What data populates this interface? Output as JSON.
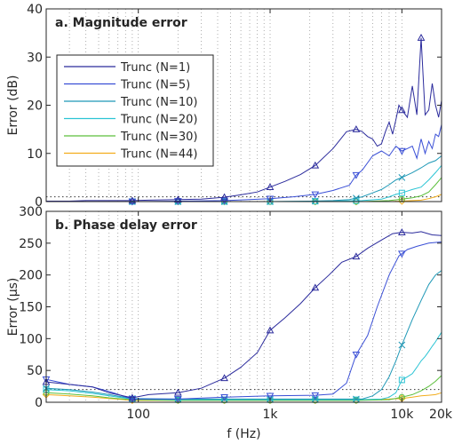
{
  "chart_data": [
    {
      "id": "magnitude",
      "type": "line",
      "title": "a. Magnitude error",
      "xlabel": "",
      "ylabel": "Error (dB)",
      "xscale": "log",
      "xlim": [
        20,
        20000
      ],
      "ylim": [
        0,
        40
      ],
      "yticks": [
        0,
        10,
        20,
        30,
        40
      ],
      "grid": "vertical-dotted",
      "legend_position": "top-left",
      "reference_line": 1,
      "series": [
        {
          "name": "Trunc (N=1)",
          "color": "#2b2b9c",
          "marker": "triangle-up",
          "x": [
            20,
            30,
            40,
            60,
            90,
            120,
            200,
            300,
            450,
            600,
            800,
            1000,
            1300,
            1700,
            2200,
            3000,
            3800,
            4500,
            5000,
            5500,
            6000,
            6500,
            7000,
            7500,
            8000,
            8500,
            9000,
            9500,
            10000,
            11000,
            12000,
            13000,
            14000,
            15000,
            16000,
            17000,
            18000,
            19000,
            20000
          ],
          "y": [
            0.1,
            0.1,
            0.2,
            0.2,
            0.2,
            0.3,
            0.4,
            0.5,
            0.9,
            1.4,
            2.0,
            3.0,
            4.2,
            5.6,
            7.5,
            11.0,
            14.5,
            15.0,
            14.5,
            13.5,
            13.0,
            11.5,
            12.0,
            14.5,
            16.5,
            14.0,
            17.0,
            20.0,
            19.0,
            17.5,
            24.0,
            18.0,
            34.0,
            18.0,
            19.0,
            24.5,
            20.0,
            17.5,
            21.0
          ],
          "marker_x": [
            90,
            200,
            450,
            1000,
            2200,
            4500,
            10000,
            14000
          ]
        },
        {
          "name": "Trunc (N=5)",
          "color": "#3a4fd6",
          "marker": "triangle-down",
          "x": [
            20,
            90,
            200,
            450,
            1000,
            1500,
            2200,
            3000,
            4000,
            4500,
            5000,
            6000,
            7000,
            8000,
            9000,
            10000,
            11000,
            12000,
            13000,
            14000,
            15000,
            16000,
            17000,
            18000,
            19000,
            20000
          ],
          "y": [
            0.0,
            0.0,
            0.1,
            0.2,
            0.6,
            1.0,
            1.5,
            2.3,
            3.4,
            5.5,
            6.5,
            9.5,
            10.5,
            9.5,
            11.5,
            10.5,
            11.0,
            11.5,
            9.0,
            13.0,
            10.0,
            12.5,
            11.0,
            14.0,
            13.5,
            16.0
          ],
          "marker_x": [
            90,
            200,
            450,
            1000,
            2200,
            4500,
            10000
          ]
        },
        {
          "name": "Trunc (N=10)",
          "color": "#1e98b6",
          "marker": "x",
          "x": [
            20,
            200,
            1000,
            2000,
            3000,
            4000,
            5000,
            6000,
            7000,
            8000,
            9000,
            10000,
            12000,
            14000,
            16000,
            18000,
            20000
          ],
          "y": [
            0.0,
            0.0,
            0.0,
            0.1,
            0.2,
            0.4,
            1.0,
            1.8,
            2.5,
            3.5,
            4.5,
            5.0,
            6.0,
            7.0,
            8.0,
            8.5,
            9.5
          ],
          "marker_x": [
            90,
            200,
            450,
            1000,
            2200,
            4500,
            10000
          ]
        },
        {
          "name": "Trunc (N=20)",
          "color": "#2bc4d4",
          "marker": "square",
          "x": [
            20,
            1000,
            3000,
            5000,
            7000,
            8000,
            9000,
            10000,
            12000,
            14000,
            16000,
            18000,
            20000
          ],
          "y": [
            0.0,
            0.0,
            0.1,
            0.2,
            0.5,
            1.0,
            1.5,
            1.8,
            2.5,
            3.0,
            4.5,
            6.0,
            7.5
          ],
          "marker_x": [
            90,
            200,
            450,
            1000,
            2200,
            4500,
            10000
          ]
        },
        {
          "name": "Trunc (N=30)",
          "color": "#5cbf3c",
          "marker": "circle",
          "x": [
            20,
            5000,
            8000,
            10000,
            12000,
            14000,
            16000,
            18000,
            20000
          ],
          "y": [
            0.0,
            0.0,
            0.2,
            0.5,
            0.8,
            1.2,
            2.0,
            3.5,
            5.0
          ],
          "marker_x": [
            90,
            200,
            450,
            1000,
            2200,
            4500,
            10000
          ]
        },
        {
          "name": "Trunc (N=44)",
          "color": "#f2ad1c",
          "marker": "diamond",
          "x": [
            20,
            8000,
            10000,
            12000,
            14000,
            16000,
            18000,
            20000
          ],
          "y": [
            0.0,
            0.0,
            0.1,
            0.2,
            0.3,
            0.6,
            1.0,
            1.5
          ],
          "marker_x": [
            90,
            200,
            450,
            1000,
            2200,
            4500,
            10000
          ]
        }
      ]
    },
    {
      "id": "phase",
      "type": "line",
      "title": "b. Phase delay error",
      "xlabel": "f (Hz)",
      "ylabel": "Error (μs)",
      "xscale": "log",
      "xlim": [
        20,
        20000
      ],
      "ylim": [
        0,
        300
      ],
      "yticks": [
        0,
        50,
        100,
        150,
        200,
        250,
        300
      ],
      "xticks": [
        100,
        1000,
        10000,
        20000
      ],
      "xticklabels": [
        "100",
        "1k",
        "10k",
        "20k"
      ],
      "grid": "vertical-dotted",
      "reference_line": 20,
      "series": [
        {
          "name": "Trunc (N=1)",
          "color": "#2b2b9c",
          "marker": "triangle-up",
          "x": [
            20,
            30,
            45,
            60,
            90,
            120,
            200,
            300,
            450,
            600,
            800,
            1000,
            1300,
            1700,
            2200,
            2800,
            3500,
            4500,
            5500,
            7000,
            8500,
            10000,
            12000,
            14000,
            17000,
            20000
          ],
          "y": [
            32,
            28,
            24,
            15,
            7,
            12,
            15,
            22,
            38,
            55,
            78,
            113,
            133,
            155,
            180,
            200,
            220,
            229,
            242,
            255,
            265,
            267,
            266,
            268,
            263,
            262
          ],
          "marker_x": [
            20,
            90,
            200,
            450,
            1000,
            2200,
            4500,
            10000
          ]
        },
        {
          "name": "Trunc (N=5)",
          "color": "#3a4fd6",
          "marker": "triangle-down",
          "x": [
            20,
            30,
            45,
            60,
            90,
            200,
            450,
            1000,
            2200,
            3000,
            3800,
            4500,
            5500,
            6500,
            8000,
            9500,
            11000,
            13000,
            16000,
            20000
          ],
          "y": [
            36,
            28,
            24,
            17,
            5,
            5,
            8,
            10,
            11,
            13,
            30,
            75,
            105,
            150,
            200,
            230,
            240,
            245,
            250,
            252
          ],
          "marker_x": [
            20,
            90,
            200,
            450,
            1000,
            2200,
            4500,
            10000
          ]
        },
        {
          "name": "Trunc (N=10)",
          "color": "#1e98b6",
          "marker": "x",
          "x": [
            20,
            30,
            45,
            60,
            90,
            200,
            450,
            1000,
            2200,
            4000,
            5000,
            6000,
            7000,
            8000,
            9000,
            10000,
            12000,
            14000,
            16000,
            18000,
            20000
          ],
          "y": [
            22,
            20,
            16,
            12,
            6,
            5,
            5,
            5,
            5,
            5,
            5,
            10,
            20,
            40,
            65,
            90,
            130,
            160,
            185,
            200,
            207
          ],
          "marker_x": [
            20,
            90,
            200,
            450,
            1000,
            2200,
            4500,
            10000
          ]
        },
        {
          "name": "Trunc (N=20)",
          "color": "#2bc4d4",
          "marker": "square",
          "x": [
            20,
            30,
            45,
            60,
            90,
            200,
            1000,
            4500,
            7000,
            8000,
            9000,
            10000,
            11000,
            12000,
            13000,
            14000,
            15000,
            16000,
            17000,
            18000,
            19000,
            20000
          ],
          "y": [
            20,
            18,
            14,
            10,
            5,
            4,
            4,
            4,
            5,
            8,
            15,
            35,
            40,
            45,
            55,
            65,
            72,
            80,
            88,
            95,
            103,
            110
          ],
          "marker_x": [
            20,
            90,
            200,
            450,
            1000,
            2200,
            4500,
            10000
          ]
        },
        {
          "name": "Trunc (N=30)",
          "color": "#5cbf3c",
          "marker": "circle",
          "x": [
            20,
            30,
            45,
            60,
            90,
            200,
            1000,
            4500,
            8000,
            10000,
            12000,
            14000,
            16000,
            18000,
            20000
          ],
          "y": [
            15,
            13,
            10,
            7,
            4,
            3,
            3,
            3,
            4,
            8,
            12,
            18,
            25,
            33,
            42
          ],
          "marker_x": [
            20,
            90,
            200,
            450,
            1000,
            2200,
            4500,
            10000
          ]
        },
        {
          "name": "Trunc (N=44)",
          "color": "#f2ad1c",
          "marker": "diamond",
          "x": [
            20,
            30,
            45,
            60,
            90,
            200,
            1000,
            4500,
            10000,
            12000,
            14000,
            16000,
            18000,
            20000
          ],
          "y": [
            12,
            10,
            8,
            6,
            3,
            3,
            3,
            3,
            6,
            8,
            10,
            11,
            12,
            15
          ],
          "marker_x": [
            20,
            90,
            200,
            450,
            1000,
            2200,
            4500,
            10000
          ]
        }
      ]
    }
  ]
}
